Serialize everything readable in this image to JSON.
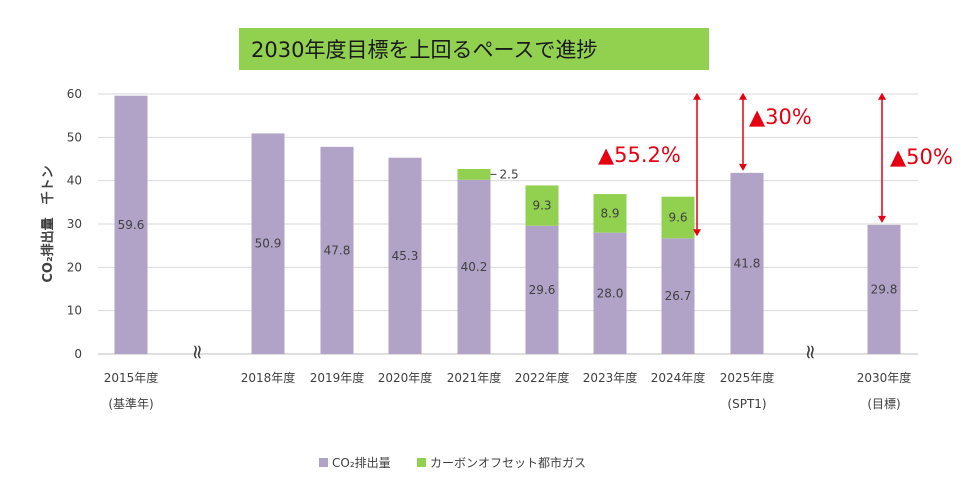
{
  "title": "2030年度目標を上回るペースで進捗",
  "colors": {
    "co2": "#b1a3c8",
    "offset": "#92d050",
    "annotation": "#e60012",
    "grid": "#d9d9d9"
  },
  "chart_data": {
    "type": "bar",
    "stacked": true,
    "ylabel": "CO₂排出量　千トン",
    "ylim": [
      0,
      60
    ],
    "yticks": [
      0,
      10,
      20,
      30,
      40,
      50,
      60
    ],
    "grid": true,
    "legend_position": "bottom",
    "categories": [
      {
        "line1": "2015年度",
        "line2": "(基準年)"
      },
      {
        "line1": "2018年度",
        "line2": ""
      },
      {
        "line1": "2019年度",
        "line2": ""
      },
      {
        "line1": "2020年度",
        "line2": ""
      },
      {
        "line1": "2021年度",
        "line2": ""
      },
      {
        "line1": "2022年度",
        "line2": ""
      },
      {
        "line1": "2023年度",
        "line2": ""
      },
      {
        "line1": "2024年度",
        "line2": ""
      },
      {
        "line1": "2025年度",
        "line2": "(SPT1)"
      },
      {
        "line1": "2030年度",
        "line2": "(目標)"
      }
    ],
    "series": [
      {
        "name": "CO₂排出量",
        "values": [
          59.6,
          50.9,
          47.8,
          45.3,
          40.2,
          29.6,
          28.0,
          26.7,
          41.8,
          29.8
        ],
        "labels": [
          "59.6",
          "50.9",
          "47.8",
          "45.3",
          "40.2",
          "29.6",
          "28.0",
          "26.7",
          "41.8",
          "29.8"
        ]
      },
      {
        "name": "カーボンオフセット都市ガス",
        "values": [
          0,
          0,
          0,
          0,
          2.5,
          9.3,
          8.9,
          9.6,
          0,
          0
        ],
        "labels": [
          "",
          "",
          "",
          "",
          "2.5",
          "9.3",
          "8.9",
          "9.6",
          "",
          ""
        ]
      }
    ],
    "annotations": [
      {
        "text": "▲55.2%",
        "from_value": 59.6,
        "to_value": 26.7
      },
      {
        "text": "▲30%",
        "from_value": 59.6,
        "to_value": 41.8
      },
      {
        "text": "▲50%",
        "from_value": 59.6,
        "to_value": 29.8
      }
    ],
    "axis_breaks": [
      "≈",
      "≈"
    ]
  }
}
